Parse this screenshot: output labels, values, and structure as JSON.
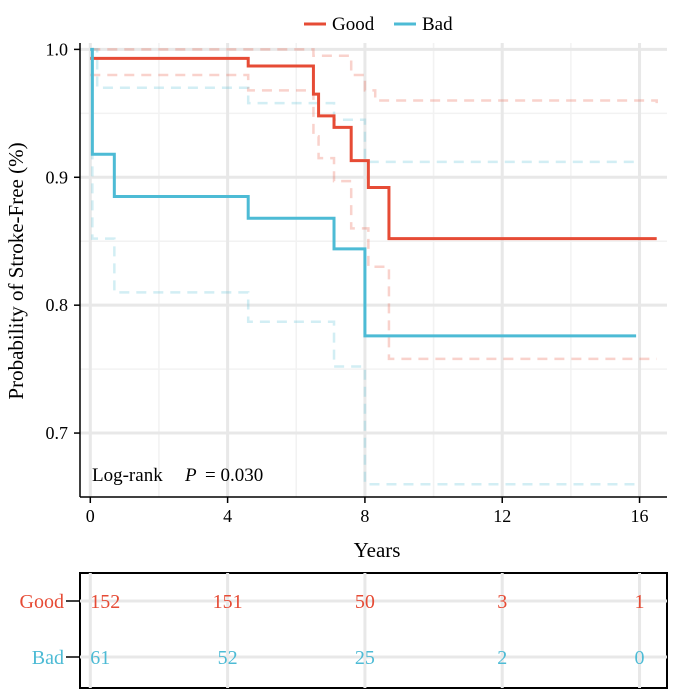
{
  "chart_data": {
    "type": "line",
    "subtype": "kaplan-meier step curve with confidence bands and risk table",
    "legend": {
      "position": "top",
      "entries": [
        {
          "label": "Good",
          "color": "#e64b35"
        },
        {
          "label": "Bad",
          "color": "#4dbbd5"
        }
      ]
    },
    "xlabel": "Years",
    "ylabel": "Probability of Stroke-Free (%)",
    "xlim": [
      -0.3,
      16.8
    ],
    "ylim": [
      0.65,
      1.005
    ],
    "x_ticks": [
      0,
      4,
      8,
      12,
      16
    ],
    "x_tick_labels": [
      "0",
      "4",
      "8",
      "12",
      "16"
    ],
    "y_ticks": [
      0.7,
      0.8,
      0.9,
      1.0
    ],
    "y_tick_labels": [
      "0.7",
      "0.8",
      "0.9",
      "1.0"
    ],
    "grid": true,
    "annotation": {
      "prefix": "Log-rank",
      "p_label": "P",
      "p_value": "= 0.030"
    },
    "series": [
      {
        "name": "Good",
        "color": "#e64b35",
        "x": [
          0,
          4.6,
          6.5,
          6.65,
          7.1,
          7.6,
          8.1,
          8.7,
          16.5
        ],
        "y": [
          0.993,
          0.987,
          0.965,
          0.948,
          0.939,
          0.913,
          0.892,
          0.852,
          0.852
        ],
        "ci_upper": {
          "x": [
            0,
            6.5,
            7.6,
            8.0,
            8.3,
            16.5
          ],
          "y": [
            1.0,
            0.995,
            0.98,
            0.968,
            0.96,
            0.958
          ]
        },
        "ci_lower": {
          "x": [
            0,
            4.6,
            6.5,
            6.65,
            7.1,
            7.6,
            8.1,
            8.7,
            16.5
          ],
          "y": [
            0.98,
            0.968,
            0.932,
            0.915,
            0.897,
            0.86,
            0.83,
            0.758,
            0.758
          ]
        }
      },
      {
        "name": "Bad",
        "color": "#4dbbd5",
        "x": [
          0,
          0.06,
          0.7,
          4.6,
          7.1,
          8.0,
          15.9
        ],
        "y": [
          1.0,
          0.918,
          0.885,
          0.868,
          0.844,
          0.776,
          0.776
        ],
        "ci_upper": {
          "x": [
            0,
            0.2,
            4.6,
            7.1,
            8.0,
            15.9
          ],
          "y": [
            1.0,
            0.97,
            0.958,
            0.945,
            0.912,
            0.912
          ]
        },
        "ci_lower": {
          "x": [
            0,
            0.06,
            0.7,
            4.6,
            7.1,
            8.0,
            15.9
          ],
          "y": [
            1.0,
            0.852,
            0.81,
            0.787,
            0.752,
            0.66,
            0.66
          ]
        }
      }
    ],
    "risk_table": {
      "time_points": [
        0,
        4,
        8,
        12,
        16
      ],
      "rows": [
        {
          "label": "Good",
          "color": "#e64b35",
          "values": [
            "152",
            "151",
            "50",
            "3",
            "1"
          ]
        },
        {
          "label": "Bad",
          "color": "#4dbbd5",
          "values": [
            "61",
            "52",
            "25",
            "2",
            "0"
          ]
        }
      ]
    }
  }
}
